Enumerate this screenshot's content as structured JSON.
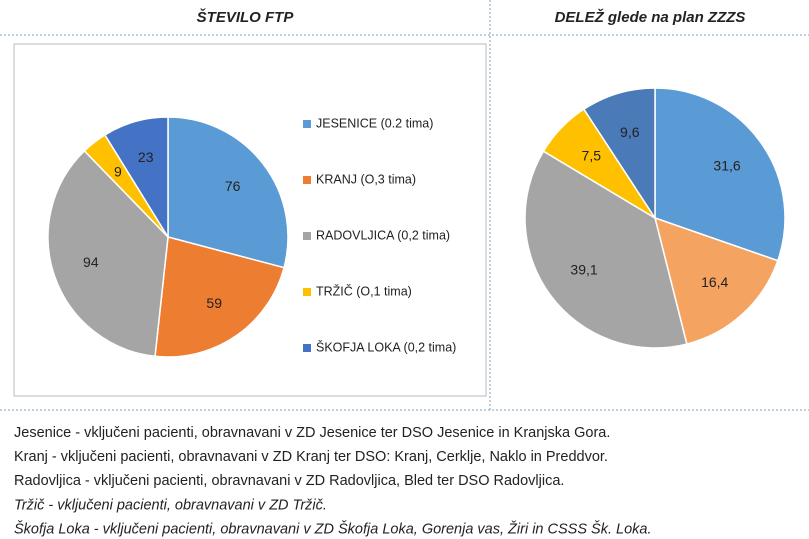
{
  "chart_data": [
    {
      "type": "pie",
      "title": "ŠTEVILO FTP",
      "categories": [
        "JESENICE (0.2 tima)",
        "KRANJ (O,3 tima)",
        "RADOVLJICA (0,2 tima)",
        "TRŽIČ (O,1 tima)",
        "ŠKOFJA LOKA (0,2 tima)"
      ],
      "values": [
        76,
        59,
        94,
        9,
        23
      ],
      "colors": [
        "#5b9bd5",
        "#ed7d31",
        "#a5a5a5",
        "#ffc000",
        "#4472c4"
      ],
      "legend": "right"
    },
    {
      "type": "pie",
      "title": "DELEŽ glede na plan ZZZS",
      "values": [
        31.6,
        16.4,
        39.1,
        7.5,
        9.6
      ],
      "value_labels": [
        "31,6",
        "16,4",
        "39,1",
        "7,5",
        "9,6"
      ],
      "colors": [
        "#5b9bd5",
        "#f4a460",
        "#a5a5a5",
        "#ffc000",
        "#4a7ab8"
      ]
    }
  ],
  "notes": [
    {
      "text": "Jesenice - vključeni pacienti, obravnavani v ZD Jesenice ter DSO Jesenice in Kranjska Gora.",
      "italic": false
    },
    {
      "text": "Kranj - vključeni pacienti, obravnavani v ZD Kranj ter DSO: Kranj, Cerklje, Naklo in Preddvor.",
      "italic": false
    },
    {
      "text": "Radovljica - vključeni pacienti, obravnavani v ZD Radovljica, Bled ter DSO Radovljica.",
      "italic": false
    },
    {
      "text": "Tržič - vključeni pacienti, obravnavani v ZD Tržič.",
      "italic": true
    },
    {
      "text": "Škofja Loka - vključeni pacienti, obravnavani v ZD Škofja Loka, Gorenja vas, Žiri in CSSS Šk. Loka.",
      "italic": true
    }
  ]
}
